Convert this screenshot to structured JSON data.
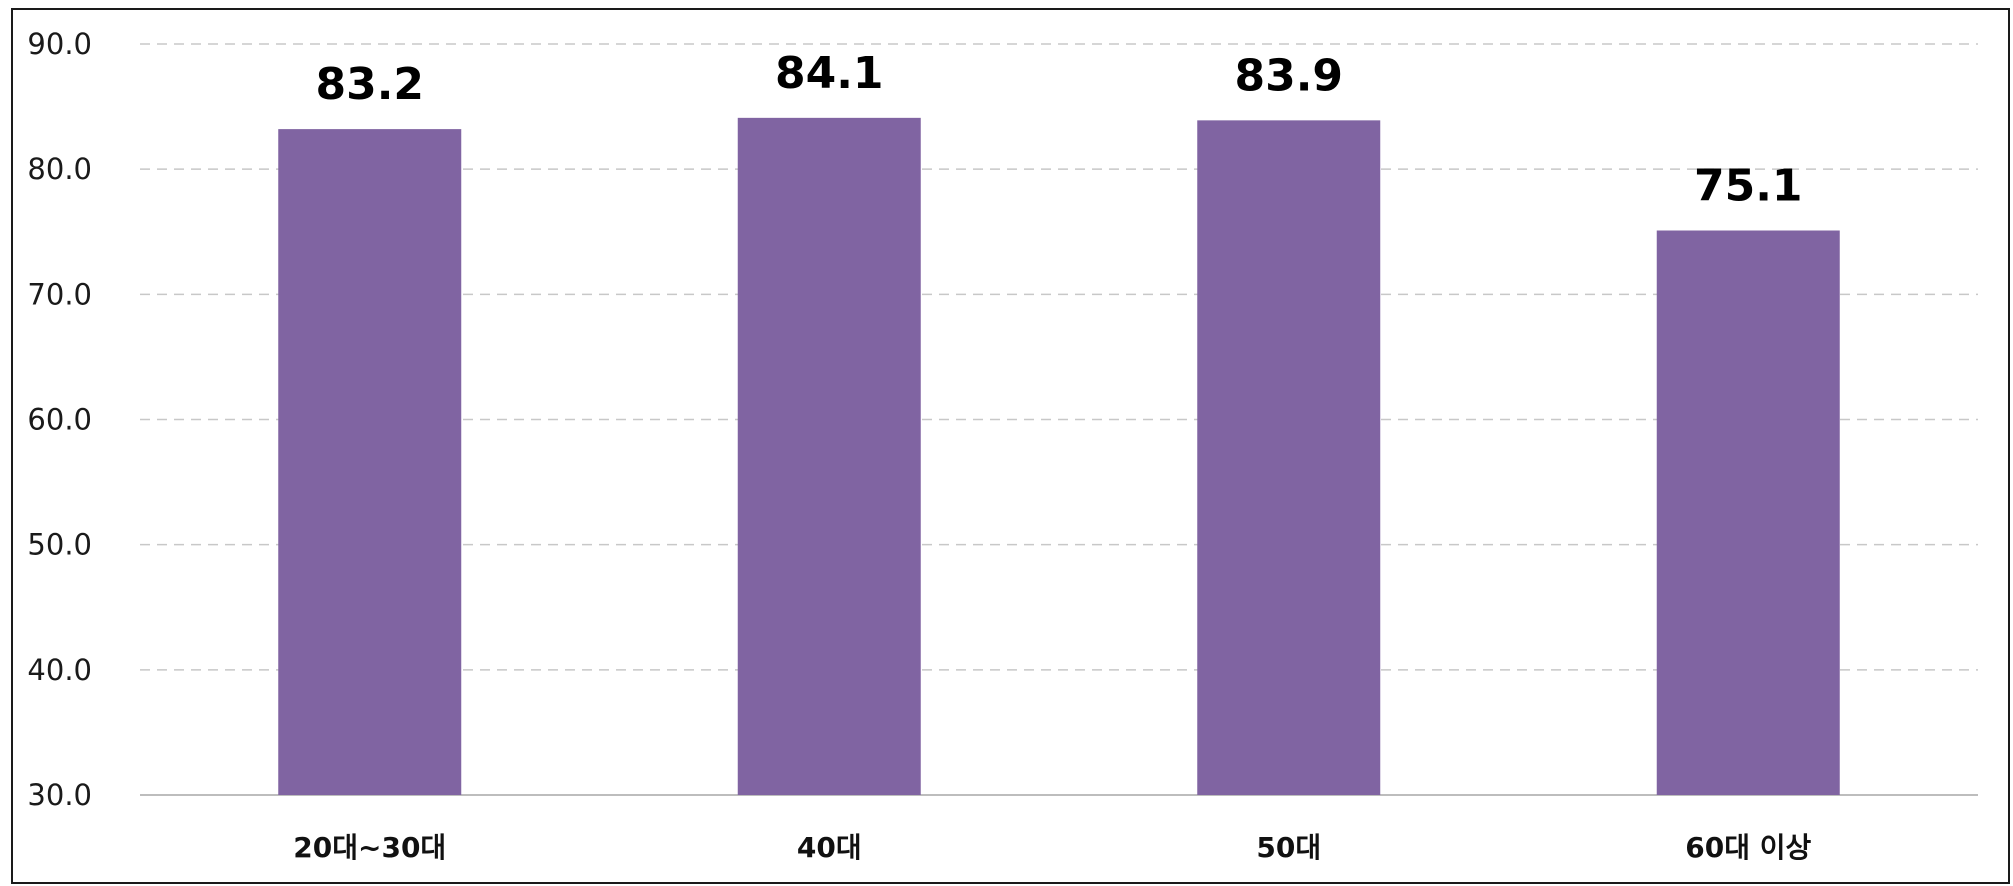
{
  "chart_data": {
    "type": "bar",
    "title": "",
    "xlabel": "",
    "ylabel": "",
    "categories": [
      "20대~30대",
      "40대",
      "50대",
      "60대 이상"
    ],
    "values": [
      83.2,
      84.1,
      83.9,
      75.1
    ],
    "value_labels": [
      "83.2",
      "84.1",
      "83.9",
      "75.1"
    ],
    "ylim": [
      30,
      90
    ],
    "yticks": [
      90,
      80,
      70,
      60,
      50,
      40,
      30
    ],
    "ytick_labels": [
      "90.0",
      "80.0",
      "70.0",
      "60.0",
      "50.0",
      "40.0",
      "30.0"
    ],
    "grid": true,
    "legend": "none",
    "colors": {
      "bar": "#8064A2",
      "grid": "#c8c8c8",
      "frame": "#1a1a1a"
    }
  }
}
